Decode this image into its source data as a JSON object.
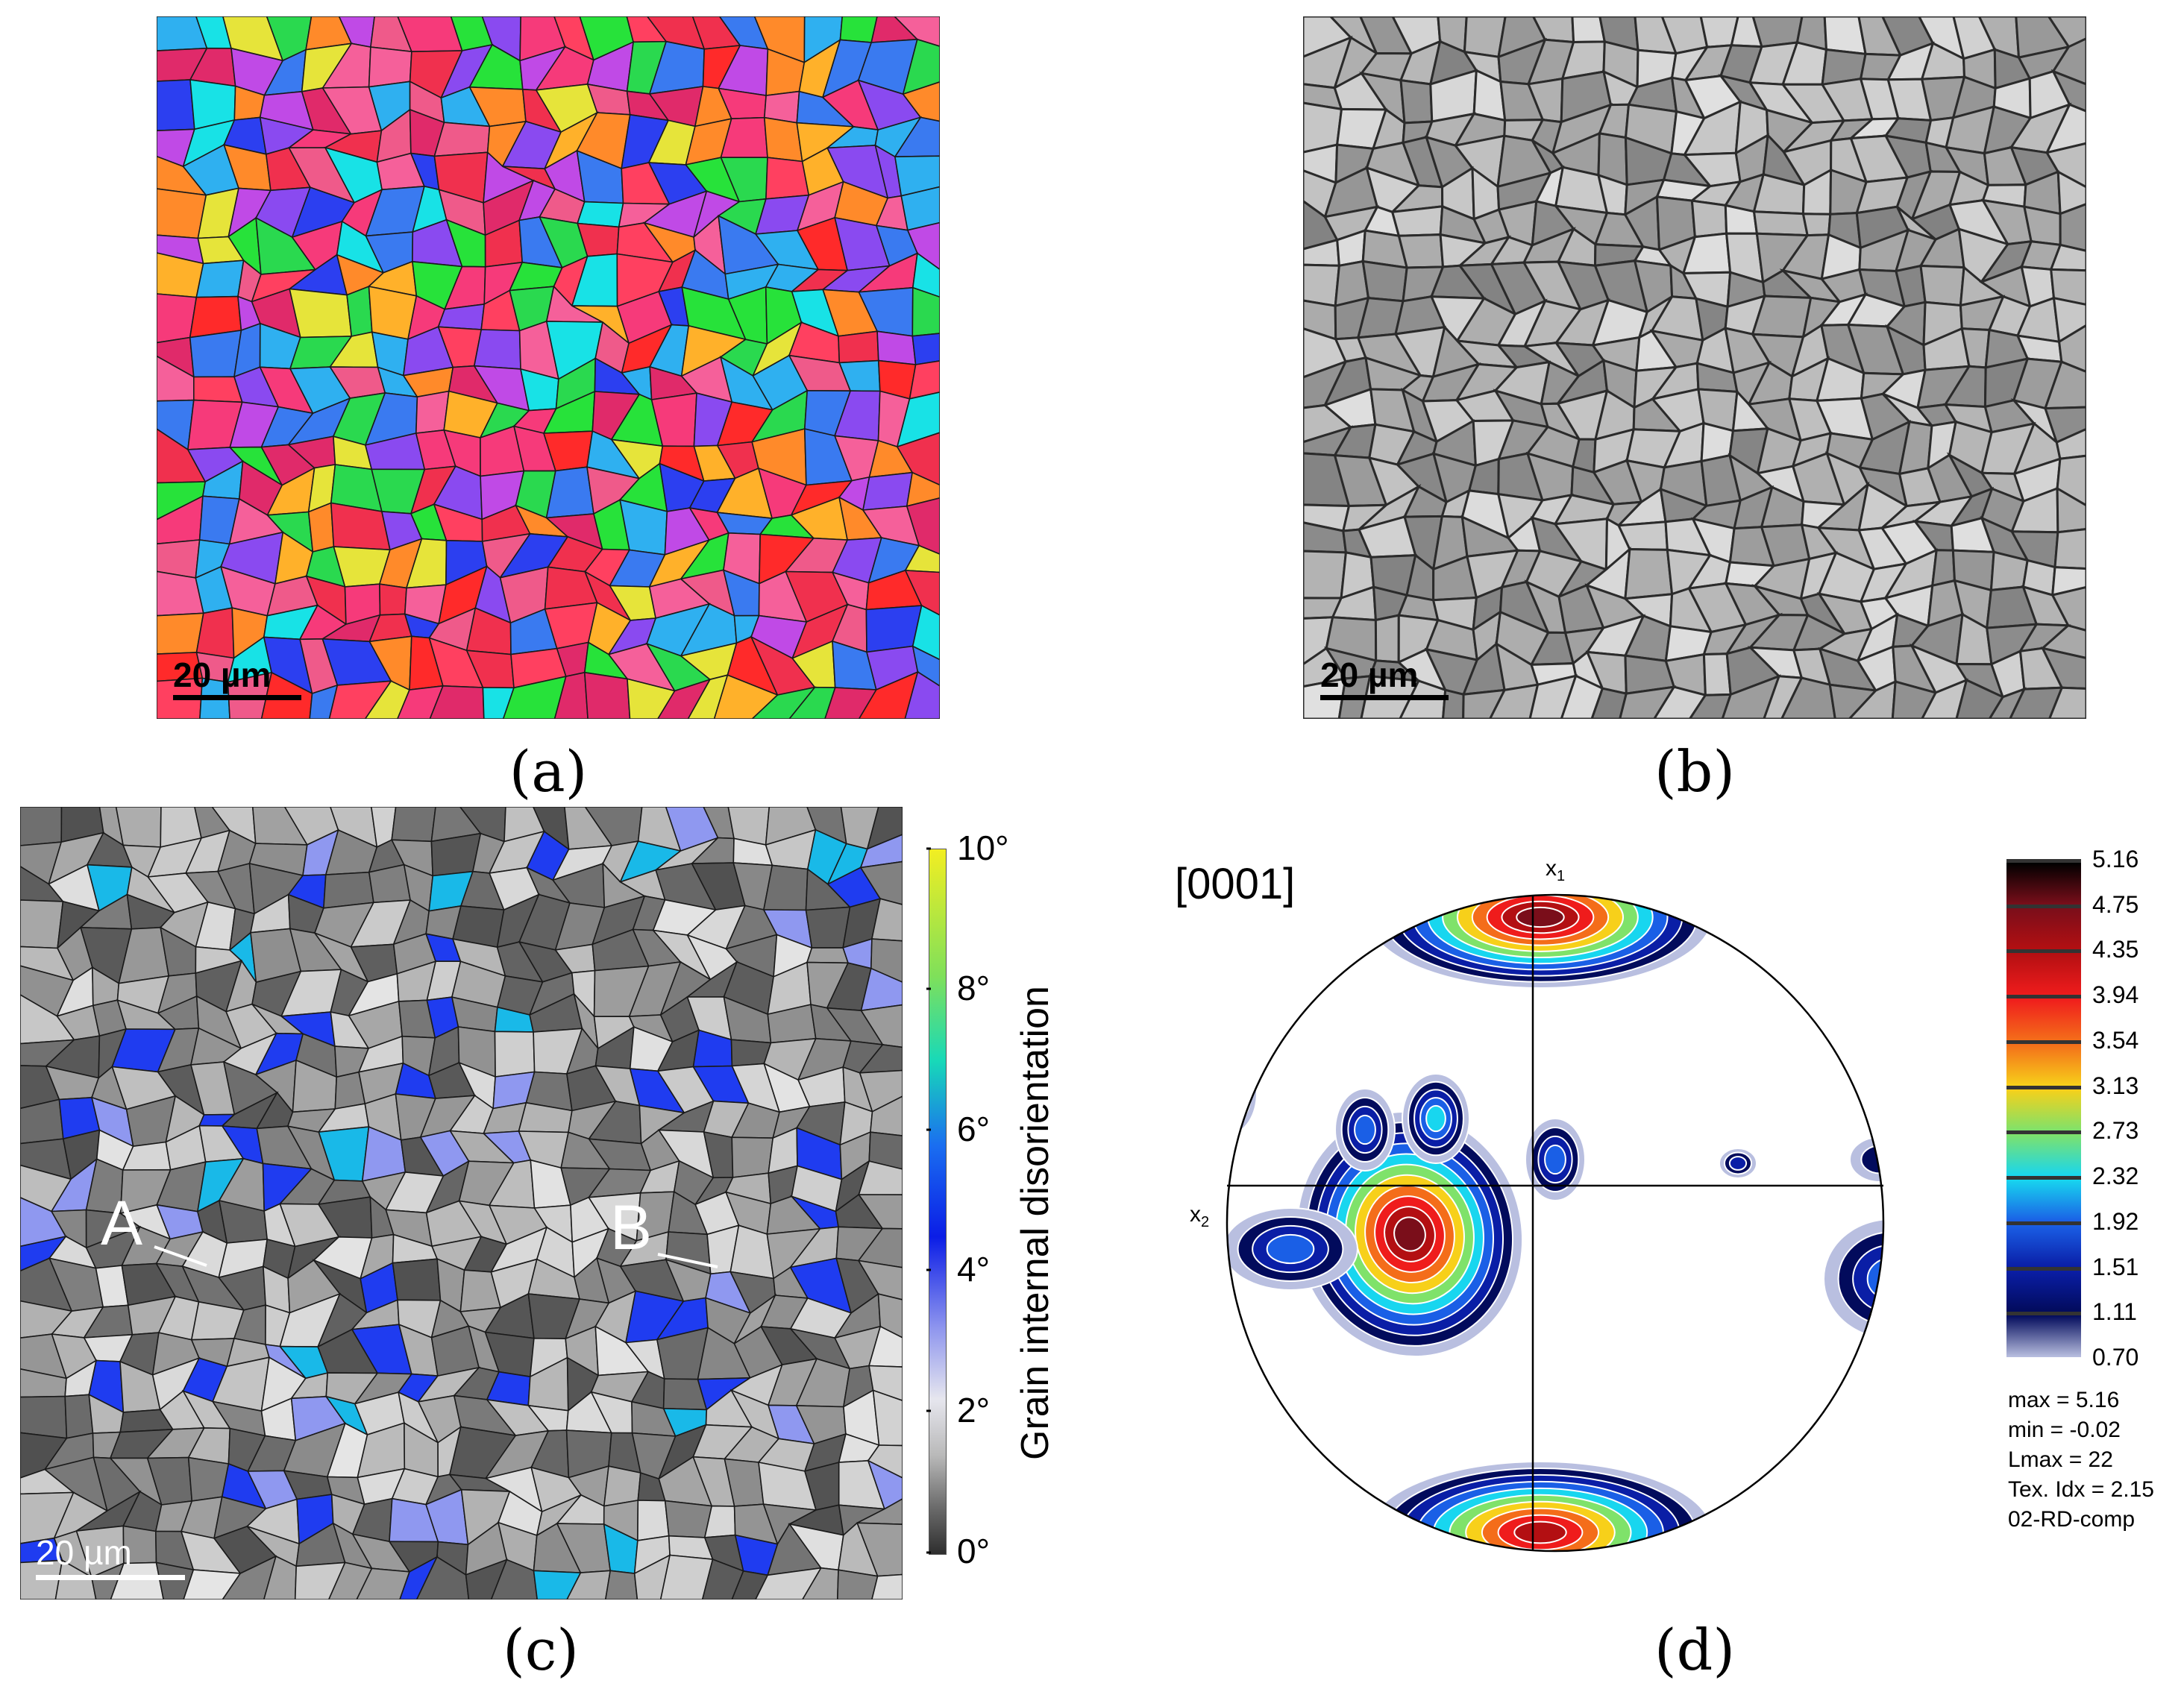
{
  "panels": {
    "a": {
      "caption": "(a)",
      "scalebar": "20 µm"
    },
    "b": {
      "caption": "(b)",
      "scalebar": "20 µm"
    },
    "c": {
      "caption": "(c)",
      "scalebar": "20 µm",
      "colorbar_title": "Grain internal disorientation",
      "colorbar_ticks": [
        "10°",
        "8°",
        "6°",
        "4°",
        "2°",
        "0°"
      ],
      "markers": [
        "A",
        "B"
      ]
    },
    "d": {
      "caption": "(d)",
      "pole": "[0001]",
      "axis_x1": "x",
      "axis_x1_sub": "1",
      "axis_x2": "x",
      "axis_x2_sub": "2",
      "legend_values": [
        "5.16",
        "4.75",
        "4.35",
        "3.94",
        "3.54",
        "3.13",
        "2.73",
        "2.32",
        "1.92",
        "1.51",
        "1.11",
        "0.70"
      ],
      "legend_colors": [
        "#000000",
        "#7a0e1a",
        "#b30f12",
        "#ef1c1c",
        "#f46d1a",
        "#f7d01a",
        "#7fe26a",
        "#18d6ef",
        "#1a5fe6",
        "#0a1ea6",
        "#020b5c",
        "#b9bfe0"
      ],
      "stats": [
        "max = 5.16",
        "min = -0.02",
        "Lmax = 22",
        "Tex. Idx = 2.15",
        "02-RD-comp"
      ]
    }
  }
}
